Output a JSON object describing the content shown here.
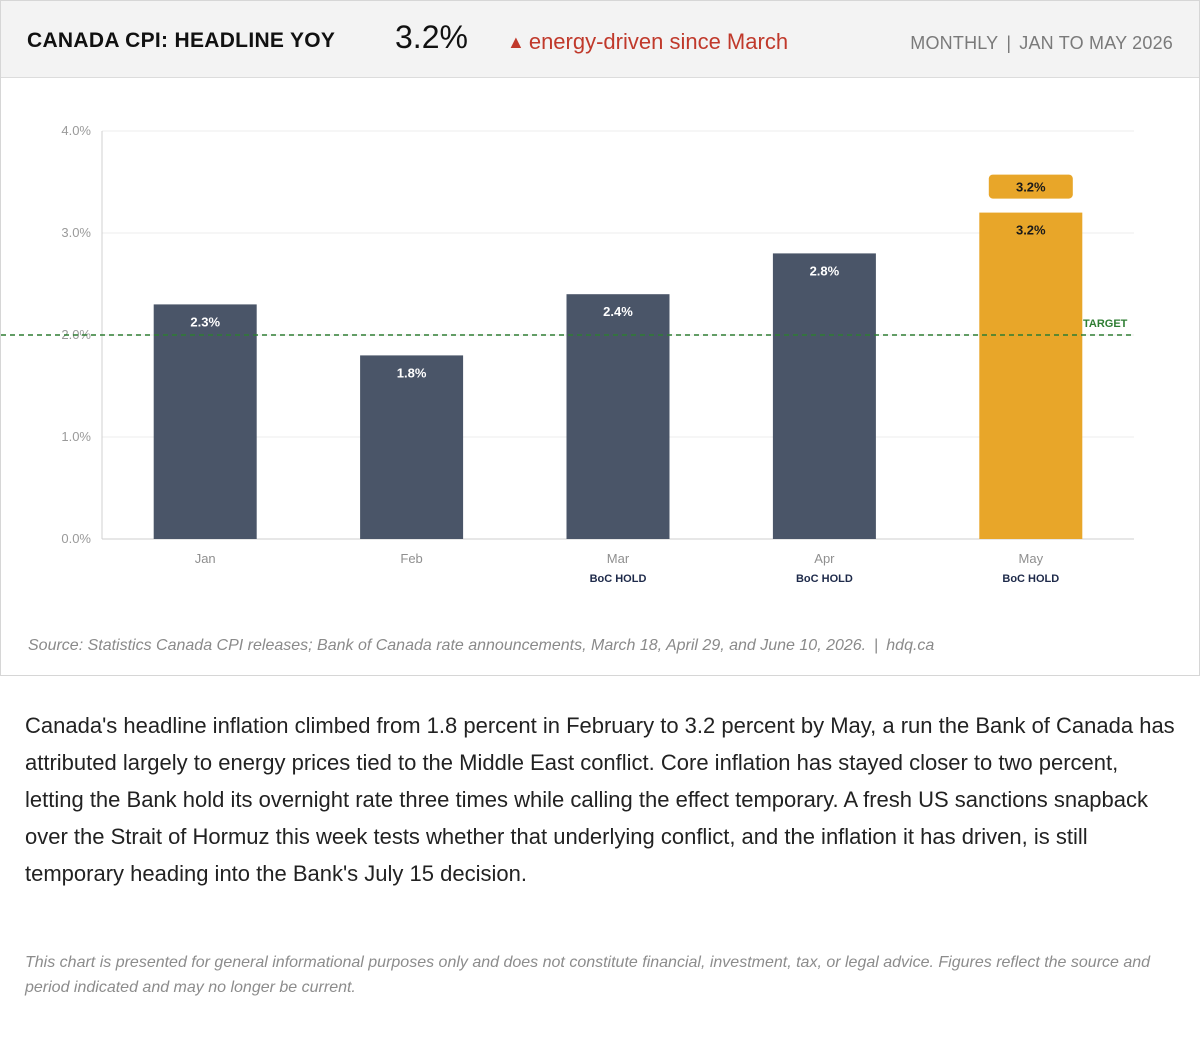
{
  "header": {
    "title": "CANADA CPI: HEADLINE YOY",
    "headline_value": "3.2%",
    "change_arrow": "▲",
    "change_note": "energy-driven since March",
    "frequency": "MONTHLY",
    "separator": "|",
    "period": "JAN TO MAY 2026"
  },
  "chart_data": {
    "type": "bar",
    "categories": [
      "Jan",
      "Feb",
      "Mar",
      "Apr",
      "May"
    ],
    "values": [
      2.3,
      1.8,
      2.4,
      2.8,
      3.2
    ],
    "value_labels": [
      "2.3%",
      "1.8%",
      "2.4%",
      "2.8%",
      "3.2%"
    ],
    "category_notes": [
      "",
      "",
      "BoC HOLD",
      "BoC HOLD",
      "BoC HOLD"
    ],
    "highlight_index": 4,
    "highlight_callout": "3.2%",
    "ylim": [
      0,
      4
    ],
    "yticks": [
      0,
      1,
      2,
      3,
      4
    ],
    "ytick_labels": [
      "0.0%",
      "1.0%",
      "2.0%",
      "3.0%",
      "4.0%"
    ],
    "target_line": {
      "value": 2.0,
      "label": "TARGET"
    },
    "grid": true,
    "colors": {
      "bar": "#4a5568",
      "highlight": "#e8a629",
      "target": "#2e7d32",
      "note": "#1e2a4a"
    }
  },
  "source": {
    "text": "Source: Statistics Canada CPI releases; Bank of Canada rate announcements, March 18, April 29, and June 10, 2026.",
    "separator": "|",
    "site": "hdq.ca"
  },
  "body": "Canada's headline inflation climbed from 1.8 percent in February to 3.2 percent by May, a run the Bank of Canada has attributed largely to energy prices tied to the Middle East conflict. Core inflation has stayed closer to two percent, letting the Bank hold its overnight rate three times while calling the effect temporary. A fresh US sanctions snapback over the Strait of Hormuz this week tests whether that underlying conflict, and the inflation it has driven, is still temporary heading into the Bank's July 15 decision.",
  "disclaimer": "This chart is presented for general informational purposes only and does not constitute financial, investment, tax, or legal advice. Figures reflect the source and period indicated and may no longer be current."
}
